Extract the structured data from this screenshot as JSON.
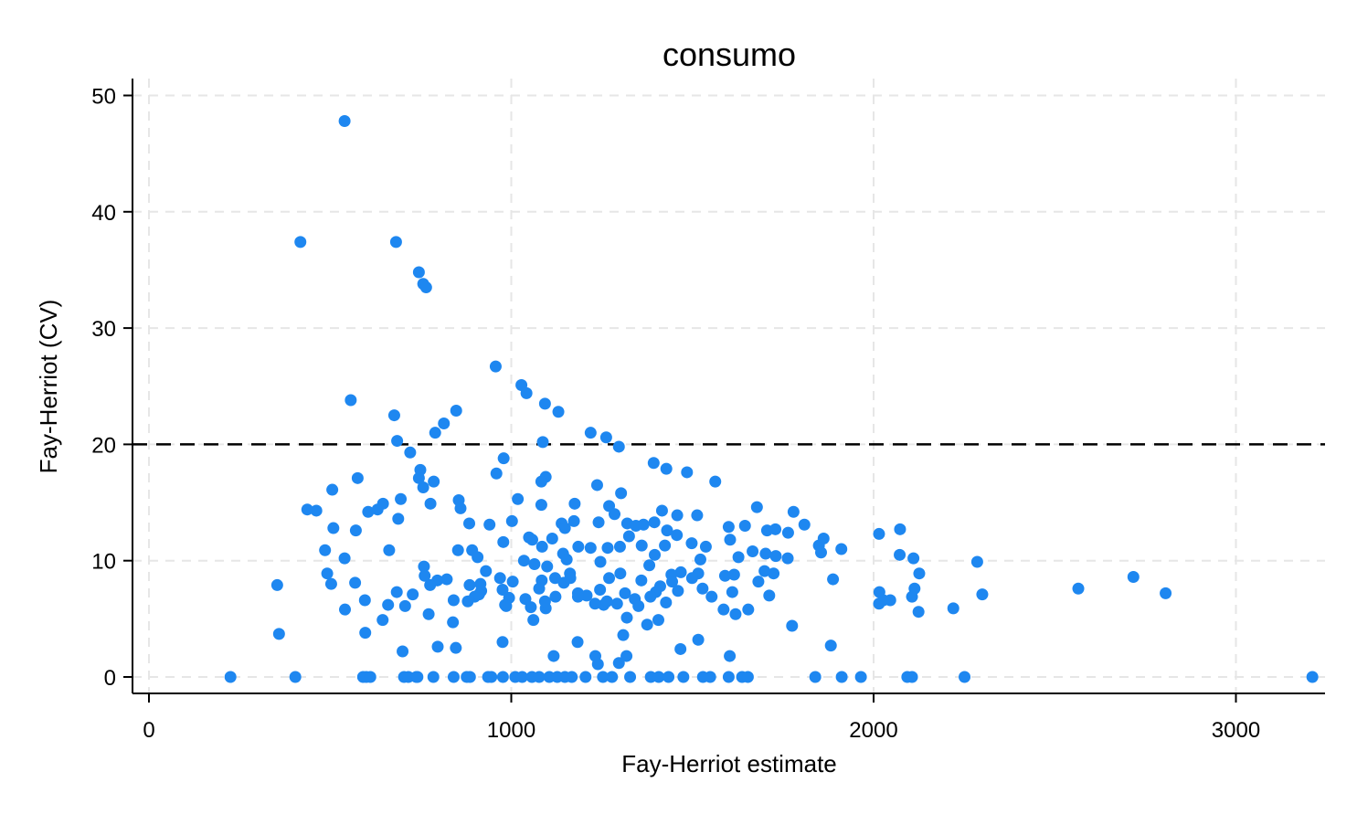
{
  "chart_data": {
    "type": "scatter",
    "title": "consumo",
    "xlabel": "Fay-Herriot estimate",
    "ylabel": "Fay-Herriot (CV)",
    "xlim": [
      -50,
      3250
    ],
    "ylim": [
      -1.5,
      51.5
    ],
    "xticks": [
      0,
      1000,
      2000,
      3000
    ],
    "yticks": [
      0,
      10,
      20,
      30,
      40,
      50
    ],
    "grid": true,
    "reference_line": {
      "y": 20,
      "style": "dashed"
    },
    "colors": {
      "points": "#1e87f0",
      "reference_line": "#000000",
      "grid": "#e6e6e6"
    },
    "points": [
      [
        540,
        47.8
      ],
      [
        418,
        37.4
      ],
      [
        682,
        37.4
      ],
      [
        745,
        34.8
      ],
      [
        757,
        33.8
      ],
      [
        765,
        33.5
      ],
      [
        557,
        23.8
      ],
      [
        957,
        26.7
      ],
      [
        1028,
        25.1
      ],
      [
        1042,
        24.4
      ],
      [
        1093,
        23.5
      ],
      [
        1130,
        22.8
      ],
      [
        848,
        22.9
      ],
      [
        677,
        22.5
      ],
      [
        814,
        21.8
      ],
      [
        790,
        21.0
      ],
      [
        1219,
        21.0
      ],
      [
        1262,
        20.6
      ],
      [
        1297,
        19.8
      ],
      [
        685,
        20.3
      ],
      [
        1087,
        20.2
      ],
      [
        721,
        19.3
      ],
      [
        979,
        18.8
      ],
      [
        1393,
        18.4
      ],
      [
        1428,
        17.9
      ],
      [
        1485,
        17.6
      ],
      [
        959,
        17.5
      ],
      [
        749,
        17.8
      ],
      [
        745,
        17.1
      ],
      [
        786,
        16.8
      ],
      [
        757,
        16.3
      ],
      [
        1563,
        16.8
      ],
      [
        1095,
        17.2
      ],
      [
        1083,
        16.8
      ],
      [
        1237,
        16.5
      ],
      [
        506,
        16.1
      ],
      [
        576,
        17.1
      ],
      [
        437,
        14.4
      ],
      [
        462,
        14.3
      ],
      [
        605,
        14.2
      ],
      [
        631,
        14.4
      ],
      [
        646,
        14.9
      ],
      [
        695,
        15.3
      ],
      [
        688,
        13.6
      ],
      [
        777,
        14.9
      ],
      [
        855,
        15.2
      ],
      [
        860,
        14.5
      ],
      [
        1002,
        13.4
      ],
      [
        1018,
        15.3
      ],
      [
        1083,
        14.8
      ],
      [
        1175,
        14.9
      ],
      [
        1303,
        15.8
      ],
      [
        1270,
        14.7
      ],
      [
        1678,
        14.6
      ],
      [
        1779,
        14.2
      ],
      [
        1458,
        13.9
      ],
      [
        1416,
        14.3
      ],
      [
        1513,
        13.9
      ],
      [
        884,
        13.2
      ],
      [
        940,
        13.1
      ],
      [
        1139,
        13.2
      ],
      [
        1148,
        12.8
      ],
      [
        1173,
        13.4
      ],
      [
        1241,
        13.3
      ],
      [
        1285,
        14.0
      ],
      [
        1320,
        13.2
      ],
      [
        1344,
        13.0
      ],
      [
        1365,
        13.1
      ],
      [
        1395,
        13.3
      ],
      [
        1430,
        12.6
      ],
      [
        1600,
        12.9
      ],
      [
        1645,
        13.0
      ],
      [
        1706,
        12.6
      ],
      [
        1729,
        12.7
      ],
      [
        1764,
        12.4
      ],
      [
        1809,
        13.1
      ],
      [
        1849,
        11.3
      ],
      [
        1862,
        11.9
      ],
      [
        2015,
        12.3
      ],
      [
        2073,
        12.7
      ],
      [
        509,
        12.8
      ],
      [
        571,
        12.6
      ],
      [
        486,
        10.9
      ],
      [
        540,
        10.2
      ],
      [
        663,
        10.9
      ],
      [
        759,
        9.5
      ],
      [
        853,
        10.9
      ],
      [
        892,
        10.9
      ],
      [
        907,
        10.3
      ],
      [
        978,
        11.6
      ],
      [
        1049,
        12.0
      ],
      [
        1058,
        11.8
      ],
      [
        1085,
        11.2
      ],
      [
        1113,
        11.9
      ],
      [
        1143,
        10.6
      ],
      [
        1153,
        10.1
      ],
      [
        1185,
        11.2
      ],
      [
        1219,
        11.1
      ],
      [
        1246,
        9.9
      ],
      [
        1266,
        11.1
      ],
      [
        1300,
        11.2
      ],
      [
        1325,
        12.1
      ],
      [
        1360,
        11.3
      ],
      [
        1396,
        10.5
      ],
      [
        1424,
        11.3
      ],
      [
        1457,
        12.2
      ],
      [
        1498,
        11.5
      ],
      [
        1522,
        10.1
      ],
      [
        1537,
        11.2
      ],
      [
        1604,
        11.8
      ],
      [
        1627,
        10.3
      ],
      [
        1666,
        10.8
      ],
      [
        1702,
        10.6
      ],
      [
        1730,
        10.4
      ],
      [
        1763,
        10.2
      ],
      [
        1855,
        10.7
      ],
      [
        1911,
        11.0
      ],
      [
        2072,
        10.5
      ],
      [
        2110,
        10.2
      ],
      [
        2286,
        9.9
      ],
      [
        2126,
        8.9
      ],
      [
        1888,
        8.4
      ],
      [
        1724,
        8.9
      ],
      [
        1699,
        9.1
      ],
      [
        1682,
        8.2
      ],
      [
        1615,
        8.8
      ],
      [
        1590,
        8.7
      ],
      [
        1553,
        6.9
      ],
      [
        1516,
        8.9
      ],
      [
        1499,
        8.5
      ],
      [
        1468,
        9.0
      ],
      [
        1442,
        8.8
      ],
      [
        1411,
        7.8
      ],
      [
        1381,
        9.6
      ],
      [
        1359,
        8.3
      ],
      [
        1341,
        6.7
      ],
      [
        1314,
        7.2
      ],
      [
        1301,
        8.9
      ],
      [
        1270,
        8.5
      ],
      [
        1255,
        6.2
      ],
      [
        1231,
        6.3
      ],
      [
        1208,
        7.0
      ],
      [
        1184,
        7.2
      ],
      [
        1162,
        8.9
      ],
      [
        1145,
        8.1
      ],
      [
        1121,
        8.5
      ],
      [
        1099,
        9.5
      ],
      [
        1084,
        8.3
      ],
      [
        1064,
        9.7
      ],
      [
        1035,
        10.0
      ],
      [
        1004,
        8.2
      ],
      [
        994,
        6.8
      ],
      [
        983,
        6.2
      ],
      [
        930,
        9.1
      ],
      [
        917,
        7.4
      ],
      [
        899,
        6.9
      ],
      [
        880,
        6.5
      ],
      [
        841,
        6.6
      ],
      [
        822,
        8.4
      ],
      [
        796,
        8.3
      ],
      [
        776,
        7.9
      ],
      [
        761,
        8.7
      ],
      [
        684,
        7.3
      ],
      [
        660,
        6.2
      ],
      [
        645,
        4.9
      ],
      [
        596,
        6.6
      ],
      [
        569,
        8.1
      ],
      [
        503,
        8.0
      ],
      [
        492,
        8.9
      ],
      [
        354,
        7.9
      ],
      [
        541,
        5.8
      ],
      [
        597,
        3.8
      ],
      [
        359,
        3.7
      ],
      [
        404,
        0
      ],
      [
        225,
        0
      ],
      [
        591,
        0
      ],
      [
        600,
        0
      ],
      [
        611,
        0
      ],
      [
        704,
        0
      ],
      [
        716,
        0
      ],
      [
        738,
        0
      ],
      [
        741,
        0
      ],
      [
        785,
        0
      ],
      [
        841,
        0
      ],
      [
        877,
        0
      ],
      [
        886,
        0
      ],
      [
        936,
        0
      ],
      [
        945,
        0
      ],
      [
        977,
        0
      ],
      [
        1011,
        0
      ],
      [
        1030,
        0
      ],
      [
        1057,
        0
      ],
      [
        1077,
        0
      ],
      [
        1105,
        0
      ],
      [
        1127,
        0
      ],
      [
        1148,
        0
      ],
      [
        1167,
        0
      ],
      [
        1205,
        0
      ],
      [
        1253,
        0
      ],
      [
        1278,
        0
      ],
      [
        1328,
        0
      ],
      [
        1385,
        0
      ],
      [
        1407,
        0
      ],
      [
        1434,
        0
      ],
      [
        1475,
        0
      ],
      [
        1529,
        0
      ],
      [
        1549,
        0
      ],
      [
        1600,
        0
      ],
      [
        1637,
        0
      ],
      [
        1653,
        0
      ],
      [
        1839,
        0
      ],
      [
        1912,
        0
      ],
      [
        1965,
        0
      ],
      [
        2093,
        0
      ],
      [
        2106,
        0
      ],
      [
        2251,
        0
      ],
      [
        3211,
        0
      ],
      [
        700,
        2.2
      ],
      [
        772,
        5.4
      ],
      [
        797,
        2.6
      ],
      [
        847,
        2.5
      ],
      [
        839,
        4.7
      ],
      [
        976,
        3.0
      ],
      [
        1061,
        4.9
      ],
      [
        1117,
        1.8
      ],
      [
        1183,
        3.0
      ],
      [
        1232,
        1.8
      ],
      [
        1239,
        1.1
      ],
      [
        1297,
        1.2
      ],
      [
        1309,
        3.6
      ],
      [
        1318,
        1.8
      ],
      [
        1319,
        5.1
      ],
      [
        1375,
        4.5
      ],
      [
        1467,
        2.4
      ],
      [
        1516,
        3.2
      ],
      [
        1603,
        1.8
      ],
      [
        1654,
        5.8
      ],
      [
        1775,
        4.4
      ],
      [
        1882,
        2.7
      ],
      [
        2015,
        6.3
      ],
      [
        2027,
        6.6
      ],
      [
        2046,
        6.6
      ],
      [
        2124,
        5.6
      ],
      [
        2220,
        5.9
      ],
      [
        2300,
        7.1
      ],
      [
        2106,
        6.9
      ],
      [
        2113,
        7.6
      ],
      [
        2016,
        7.3
      ],
      [
        2565,
        7.6
      ],
      [
        2717,
        8.6
      ],
      [
        2806,
        7.2
      ],
      [
        1712,
        7.0
      ],
      [
        1610,
        7.3
      ],
      [
        1586,
        5.8
      ],
      [
        1619,
        5.4
      ],
      [
        1528,
        7.6
      ],
      [
        1460,
        7.4
      ],
      [
        1399,
        7.3
      ],
      [
        1444,
        8.2
      ],
      [
        1351,
        6.1
      ],
      [
        1384,
        6.9
      ],
      [
        1406,
        4.9
      ],
      [
        1427,
        6.4
      ],
      [
        1292,
        6.3
      ],
      [
        1264,
        6.5
      ],
      [
        1245,
        7.5
      ],
      [
        1184,
        6.9
      ],
      [
        1163,
        8.5
      ],
      [
        1122,
        6.9
      ],
      [
        1095,
        5.9
      ],
      [
        1093,
        6.5
      ],
      [
        1039,
        6.7
      ],
      [
        1054,
        6.0
      ],
      [
        1077,
        7.6
      ],
      [
        986,
        6.1
      ],
      [
        976,
        7.5
      ],
      [
        915,
        8.0
      ],
      [
        969,
        8.5
      ],
      [
        911,
        7.1
      ],
      [
        885,
        7.9
      ],
      [
        707,
        6.1
      ],
      [
        728,
        7.1
      ]
    ]
  }
}
